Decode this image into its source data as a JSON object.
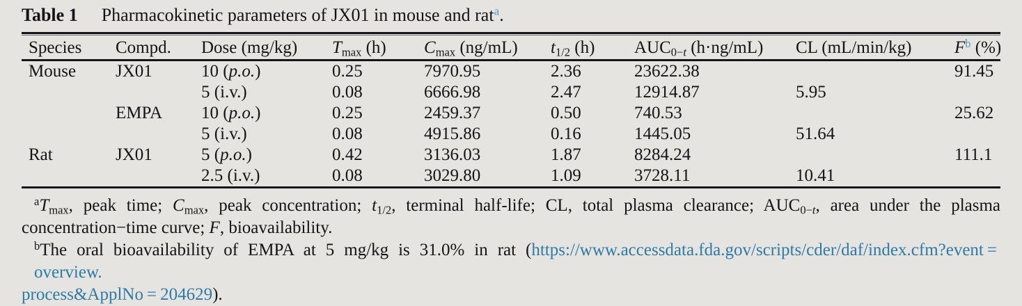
{
  "colors": {
    "background": "#e5e4e1",
    "text": "#141414",
    "rule": "#151515",
    "link": "#2b7ca6",
    "footnote_marker_teal": "#4a9fc9"
  },
  "title": {
    "label": "Table 1",
    "caption": "Pharmacokinetic parameters of JX01 in mouse and rat",
    "marker": "a",
    "period": "."
  },
  "table": {
    "column_ids": [
      "species",
      "compound",
      "dose",
      "tmax",
      "cmax",
      "thalf",
      "auc",
      "cl",
      "f"
    ],
    "headers_html": [
      "Species",
      "Compd.",
      "Dose (mg/kg)",
      "<i>T</i><sub>max</sub> (h)",
      "<i>C</i><sub>max</sub> (ng/mL)",
      "<i>t</i><sub>1/2</sub> (h)",
      "AUC<sub>0−<i>t</i></sub> (h·ng/mL)",
      "CL (mL/min/kg)",
      "<i>F</i><sup class='mk'>b</sup> (%)"
    ],
    "rows_html": [
      [
        "Mouse",
        "JX01",
        "10 (<i>p.o.</i>)",
        "0.25",
        "7970.95",
        "2.36",
        "23622.38",
        "",
        "91.45"
      ],
      [
        "",
        "",
        "5 (i.v.)",
        "0.08",
        "6666.98",
        "2.47",
        "12914.87",
        "5.95",
        ""
      ],
      [
        "",
        "EMPA",
        "10 (<i>p.o.</i>)",
        "0.25",
        "2459.37",
        "0.50",
        "740.53",
        "",
        "25.62"
      ],
      [
        "",
        "",
        "5 (i.v.)",
        "0.08",
        "4915.86",
        "0.16",
        "1445.05",
        "51.64",
        ""
      ],
      [
        "Rat",
        "JX01",
        "5 (<i>p.o.</i>)",
        "0.42",
        "3136.03",
        "1.87",
        "8284.24",
        "",
        "111.1"
      ],
      [
        "",
        "",
        "2.5 (i.v.)",
        "0.08",
        "3029.80",
        "1.09",
        "3728.11",
        "10.41",
        ""
      ]
    ]
  },
  "footnotes": {
    "a": {
      "line1_html": "<sup>a</sup><i>T</i><sub>max</sub>, peak time; <i>C</i><sub>max</sub>, peak concentration; <i>t</i><sub>1/2</sub>, terminal half-life; CL, total plasma clearance; AUC<sub>0−<i>t</i></sub>, area under the plasma",
      "line2_html": "concentration−time curve; <i>F</i>, bioavailability."
    },
    "b": {
      "marker": "b",
      "text_before": "The oral bioavailability of EMPA at 5 mg/kg is 31.0% in rat (",
      "link_line1": "https://www.accessdata.fda.gov/scripts/cder/daf/index.cfm?event = overview.",
      "link_line2": "process&ApplNo = 204629",
      "text_after": ")."
    }
  }
}
